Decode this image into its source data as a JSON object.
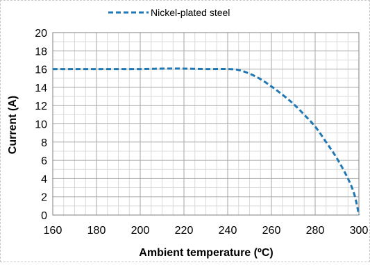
{
  "chart_data": {
    "type": "line",
    "title": "",
    "xlabel": "Ambient temperature (ºC)",
    "ylabel": "Current (A)",
    "xlim": [
      160,
      300
    ],
    "ylim": [
      0,
      20
    ],
    "x_major_ticks": [
      160,
      180,
      200,
      220,
      240,
      260,
      280,
      300
    ],
    "y_major_ticks": [
      0,
      2,
      4,
      6,
      8,
      10,
      12,
      14,
      16,
      18,
      20
    ],
    "x_minor_step": 5,
    "y_minor_step": 1,
    "grid": true,
    "legend_position": "top-center",
    "series": [
      {
        "name": "Nickel-plated steel",
        "color": "#1F77B4",
        "line_style": "dashed",
        "x": [
          160,
          180,
          200,
          210,
          220,
          230,
          240,
          245,
          250,
          255,
          260,
          265,
          270,
          275,
          280,
          285,
          290,
          295,
          298,
          300
        ],
        "y": [
          16.0,
          16.0,
          16.0,
          16.05,
          16.05,
          16.0,
          16.0,
          15.9,
          15.5,
          14.9,
          14.1,
          13.2,
          12.2,
          11.0,
          9.7,
          8.0,
          6.2,
          4.0,
          2.2,
          0.0
        ]
      }
    ]
  }
}
